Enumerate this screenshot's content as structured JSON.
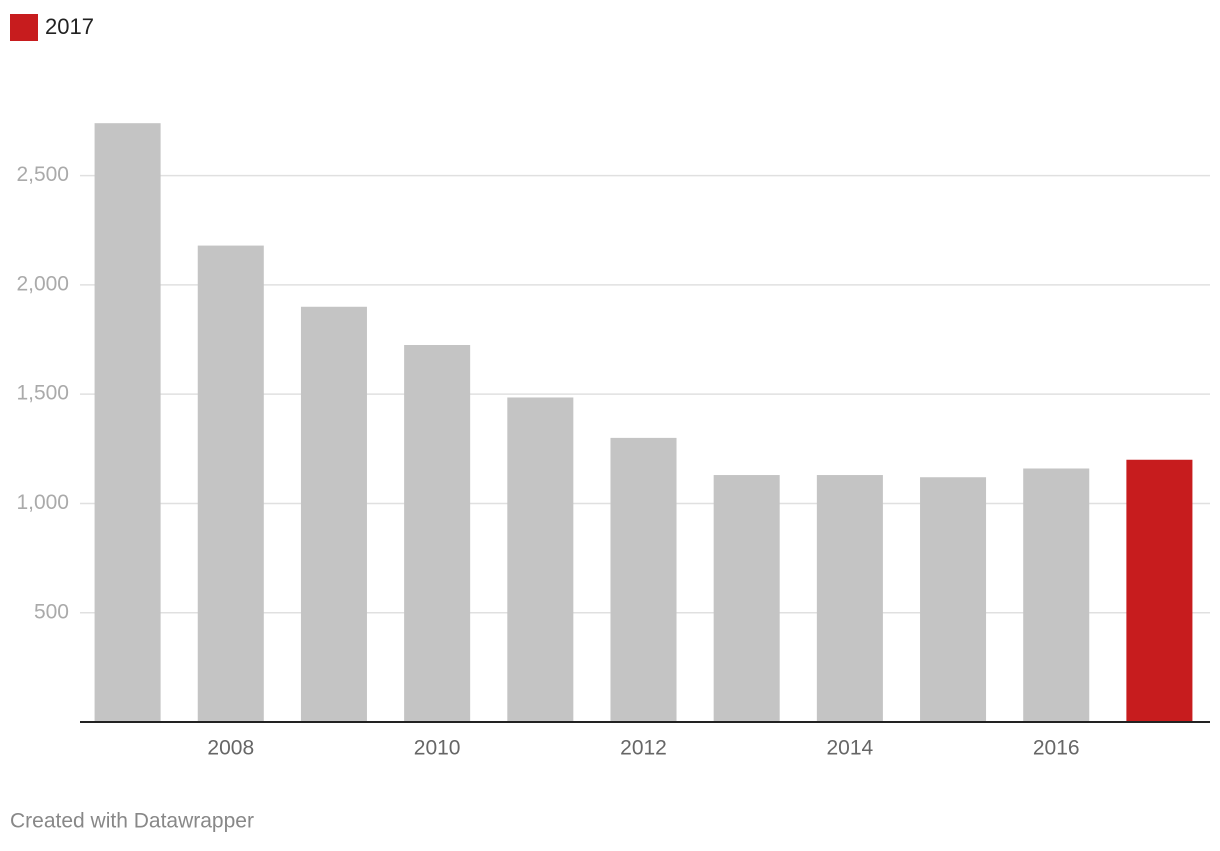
{
  "chart_data": {
    "type": "bar",
    "legend": [
      {
        "label": "2017",
        "color": "#c71c1e"
      }
    ],
    "categories": [
      null,
      "2008",
      null,
      "2010",
      null,
      "2012",
      null,
      "2014",
      null,
      "2016",
      null
    ],
    "values": [
      2740,
      2180,
      1900,
      1725,
      1485,
      1300,
      1130,
      1130,
      1120,
      1160,
      1200
    ],
    "colors": [
      "#c4c4c4",
      "#c4c4c4",
      "#c4c4c4",
      "#c4c4c4",
      "#c4c4c4",
      "#c4c4c4",
      "#c4c4c4",
      "#c4c4c4",
      "#c4c4c4",
      "#c4c4c4",
      "#c71c1e"
    ],
    "ylim": [
      0,
      2750
    ],
    "yticks": [
      500,
      {
        "value": 1000,
        "label": "1,000"
      },
      {
        "value": 1500,
        "label": "1,500"
      },
      {
        "value": 2000,
        "label": "2,000"
      },
      {
        "value": 2500,
        "label": "2,500"
      }
    ],
    "grid": true,
    "footer": "Created with Datawrapper"
  }
}
